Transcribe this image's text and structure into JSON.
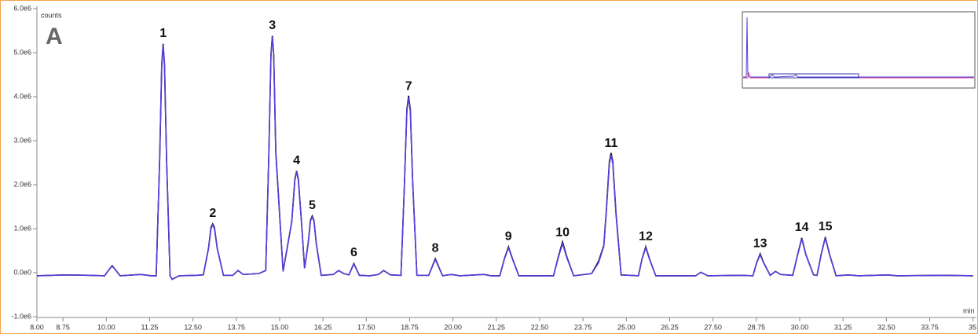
{
  "chart_data": {
    "type": "line",
    "panel_label": "A",
    "ylabel": "counts",
    "xlabel": "min",
    "xlim": [
      8,
      35.05
    ],
    "ylim": [
      -1000000,
      6000000
    ],
    "xticks": [
      {
        "value": 8,
        "label": "8.00"
      },
      8.75,
      {
        "value": 10,
        "label": "10.00"
      },
      11.25,
      {
        "value": 12.5,
        "label": "12.50"
      },
      13.75,
      {
        "value": 15,
        "label": "15.00"
      },
      16.25,
      {
        "value": 17.5,
        "label": "17.50"
      },
      18.75,
      {
        "value": 20,
        "label": "20.00"
      },
      21.25,
      {
        "value": 22.5,
        "label": "22.50"
      },
      23.75,
      {
        "value": 25,
        "label": "25.00"
      },
      26.25,
      {
        "value": 27.5,
        "label": "27.50"
      },
      28.75,
      {
        "value": 30,
        "label": "30.00"
      },
      31.25,
      {
        "value": 32.5,
        "label": "32.50"
      },
      33.75,
      35
    ],
    "yticks": [
      {
        "value": -1000000,
        "label": "-1.0e6"
      },
      {
        "value": 0,
        "label": "0.0e0"
      },
      {
        "value": 1000000,
        "label": "1.0e6"
      },
      {
        "value": 2000000,
        "label": "2.0e6"
      },
      {
        "value": 3000000,
        "label": "3.0e6"
      },
      {
        "value": 4000000,
        "label": "4.0e6"
      },
      {
        "value": 5000000,
        "label": "5.0e6"
      },
      {
        "value": 6000000,
        "label": "6.0e6"
      }
    ],
    "x": [
      8.0,
      8.8,
      9.5,
      9.95,
      10.07,
      10.17,
      10.27,
      10.4,
      11.0,
      11.3,
      11.44,
      11.54,
      11.6,
      11.64,
      11.68,
      11.74,
      11.84,
      11.9,
      12.1,
      12.6,
      12.8,
      12.95,
      13.02,
      13.07,
      13.12,
      13.2,
      13.38,
      13.65,
      13.8,
      13.95,
      14.4,
      14.6,
      14.69,
      14.75,
      14.79,
      14.83,
      14.89,
      15.1,
      15.35,
      15.44,
      15.49,
      15.54,
      15.63,
      15.72,
      15.82,
      15.89,
      15.94,
      15.99,
      16.06,
      16.2,
      16.55,
      16.7,
      16.85,
      17.0,
      17.14,
      17.3,
      17.6,
      17.85,
      18.0,
      18.2,
      18.5,
      18.6,
      18.67,
      18.72,
      18.77,
      18.84,
      18.96,
      19.3,
      19.49,
      19.7,
      19.95,
      20.2,
      20.9,
      21.1,
      21.35,
      21.48,
      21.6,
      21.72,
      21.9,
      22.9,
      23.04,
      23.16,
      23.28,
      23.48,
      24.0,
      24.2,
      24.35,
      24.42,
      24.51,
      24.56,
      24.61,
      24.7,
      24.85,
      25.1,
      25.35,
      25.45,
      25.56,
      25.67,
      25.85,
      27.0,
      27.15,
      27.35,
      28.3,
      28.65,
      28.76,
      28.86,
      28.96,
      29.15,
      29.3,
      29.45,
      29.8,
      29.94,
      30.06,
      30.18,
      30.4,
      30.5,
      30.62,
      30.74,
      30.86,
      31.05,
      31.4,
      31.7,
      32.55,
      32.8,
      34.15,
      35.0
    ],
    "series": [
      {
        "color": "#000000",
        "values": [
          -70000,
          -50000,
          -60000,
          -70000,
          60000,
          160000,
          60000,
          -70000,
          -40000,
          -70000,
          -70000,
          2550000,
          4700000,
          5200000,
          4700000,
          2550000,
          -70000,
          -150000,
          -70000,
          -60000,
          -50000,
          560000,
          1030000,
          1110000,
          1030000,
          560000,
          -60000,
          -60000,
          50000,
          -40000,
          -20000,
          50000,
          2750000,
          4950000,
          5380000,
          4950000,
          2750000,
          30000,
          1160000,
          2130000,
          2310000,
          2130000,
          1160000,
          100000,
          650000,
          1190000,
          1290000,
          1190000,
          650000,
          -60000,
          -40000,
          50000,
          -20000,
          -50000,
          210000,
          -60000,
          -70000,
          -40000,
          50000,
          -50000,
          -60000,
          2020000,
          3710000,
          4020000,
          3710000,
          2020000,
          -60000,
          -60000,
          320000,
          -70000,
          -40000,
          -70000,
          -40000,
          -70000,
          -70000,
          310000,
          590000,
          310000,
          -70000,
          -70000,
          370000,
          700000,
          370000,
          -70000,
          -20000,
          260000,
          620000,
          1380000,
          2520000,
          2720000,
          2520000,
          1380000,
          -50000,
          -60000,
          -70000,
          310000,
          590000,
          310000,
          -70000,
          -70000,
          10000,
          -70000,
          -60000,
          -70000,
          230000,
          430000,
          230000,
          -60000,
          30000,
          -40000,
          -60000,
          410000,
          790000,
          410000,
          -50000,
          -60000,
          420000,
          810000,
          420000,
          -70000,
          -50000,
          -70000,
          -50000,
          -70000,
          -60000,
          -70000
        ]
      },
      {
        "color": "#5a3ce0",
        "values": [
          -70000,
          -50000,
          -60000,
          -70000,
          60000,
          150000,
          60000,
          -70000,
          -40000,
          -70000,
          -70000,
          2600000,
          4770000,
          5180000,
          4770000,
          2600000,
          -70000,
          -150000,
          -70000,
          -60000,
          -50000,
          550000,
          1000000,
          1090000,
          1000000,
          550000,
          -60000,
          -60000,
          50000,
          -40000,
          -20000,
          50000,
          2700000,
          4930000,
          5360000,
          4930000,
          2700000,
          30000,
          1150000,
          2100000,
          2290000,
          2100000,
          1150000,
          100000,
          640000,
          1170000,
          1270000,
          1170000,
          640000,
          -60000,
          -40000,
          50000,
          -20000,
          -50000,
          200000,
          -60000,
          -70000,
          -40000,
          50000,
          -50000,
          -60000,
          2000000,
          3660000,
          3980000,
          3660000,
          2000000,
          -60000,
          -60000,
          300000,
          -70000,
          -40000,
          -70000,
          -40000,
          -70000,
          -70000,
          300000,
          570000,
          300000,
          -70000,
          -70000,
          350000,
          660000,
          350000,
          -70000,
          -20000,
          230000,
          600000,
          1340000,
          2470000,
          2680000,
          2470000,
          1340000,
          -50000,
          -60000,
          -70000,
          300000,
          570000,
          300000,
          -70000,
          -70000,
          10000,
          -70000,
          -60000,
          -70000,
          220000,
          410000,
          220000,
          -60000,
          30000,
          -40000,
          -60000,
          400000,
          770000,
          400000,
          -50000,
          -60000,
          410000,
          790000,
          410000,
          -70000,
          -50000,
          -70000,
          -50000,
          -70000,
          -60000,
          -70000
        ]
      }
    ],
    "annotations": [
      {
        "text": "1",
        "x": 11.64,
        "y": 5180000
      },
      {
        "text": "2",
        "x": 13.07,
        "y": 1090000
      },
      {
        "text": "3",
        "x": 14.79,
        "y": 5360000
      },
      {
        "text": "4",
        "x": 15.49,
        "y": 2290000
      },
      {
        "text": "5",
        "x": 15.94,
        "y": 1270000
      },
      {
        "text": "6",
        "x": 17.14,
        "y": 200000
      },
      {
        "text": "7",
        "x": 18.72,
        "y": 3980000
      },
      {
        "text": "8",
        "x": 19.49,
        "y": 300000
      },
      {
        "text": "9",
        "x": 21.6,
        "y": 570000
      },
      {
        "text": "10",
        "x": 23.16,
        "y": 660000
      },
      {
        "text": "11",
        "x": 24.56,
        "y": 2680000
      },
      {
        "text": "12",
        "x": 25.56,
        "y": 570000
      },
      {
        "text": "13",
        "x": 28.86,
        "y": 410000
      },
      {
        "text": "14",
        "x": 30.06,
        "y": 770000
      },
      {
        "text": "15",
        "x": 30.74,
        "y": 790000
      }
    ]
  }
}
